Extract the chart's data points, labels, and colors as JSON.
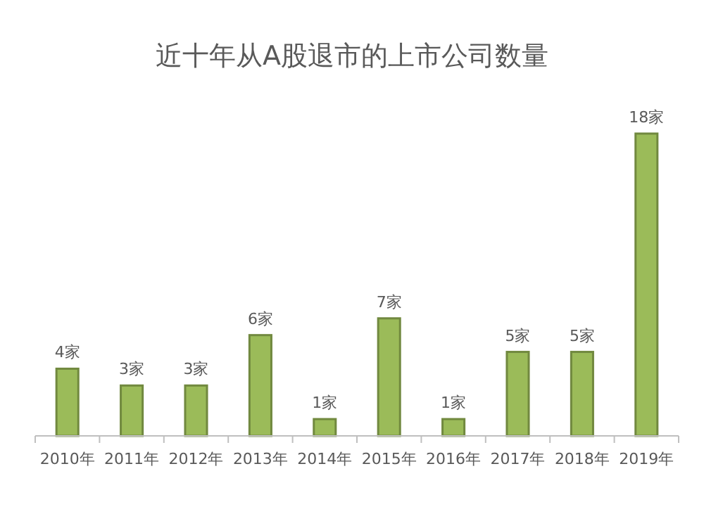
{
  "chart_data": {
    "type": "bar",
    "title": "近十年从A股退市的上市公司数量",
    "categories": [
      "2010年",
      "2011年",
      "2012年",
      "2013年",
      "2014年",
      "2015年",
      "2016年",
      "2017年",
      "2018年",
      "2019年"
    ],
    "values": [
      4,
      3,
      3,
      6,
      1,
      7,
      1,
      5,
      5,
      18
    ],
    "value_labels": [
      "4家",
      "3家",
      "3家",
      "6家",
      "1家",
      "7家",
      "1家",
      "5家",
      "5家",
      "18家"
    ],
    "color": "#9bbb59"
  }
}
